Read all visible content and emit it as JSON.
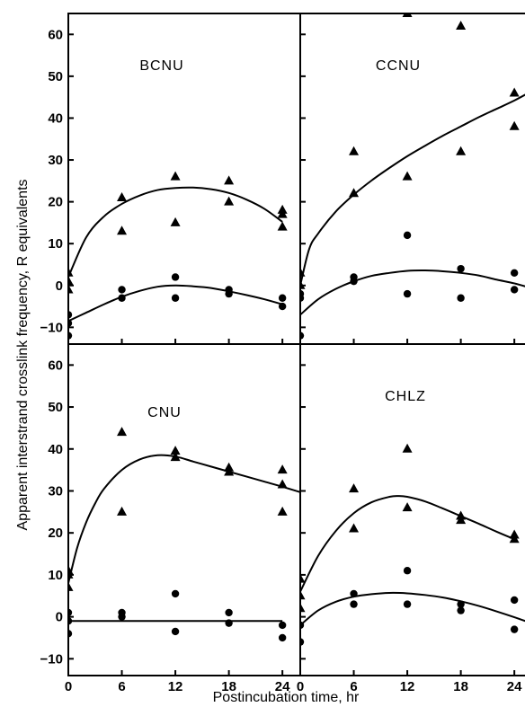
{
  "chart_data": {
    "type": "scatter",
    "ylabel": "Apparent interstrand crosslink frequency, R equivalents",
    "xlabel": "Postincubation time, hr",
    "x_ticks": [
      0,
      6,
      12,
      18,
      24
    ],
    "top_y_ticks": [
      60,
      50,
      40,
      30,
      20,
      10,
      0,
      -10
    ],
    "bottom_y_ticks": [
      60,
      50,
      40,
      30,
      20,
      10,
      0,
      -10
    ],
    "top_ylim": [
      -14,
      65
    ],
    "bottom_ylim": [
      -14,
      65
    ],
    "xlim": [
      0,
      26
    ],
    "panels": [
      {
        "title": "BCNU",
        "position": "top-left",
        "triangles": [
          [
            0,
            3
          ],
          [
            0,
            1
          ],
          [
            0,
            -1
          ],
          [
            6,
            21
          ],
          [
            6,
            13
          ],
          [
            12,
            26
          ],
          [
            12,
            15
          ],
          [
            18,
            25
          ],
          [
            18,
            20
          ],
          [
            24,
            18
          ],
          [
            24,
            17
          ],
          [
            24,
            14
          ]
        ],
        "circles": [
          [
            0,
            -7
          ],
          [
            0,
            -9
          ],
          [
            0,
            -12
          ],
          [
            6,
            -1
          ],
          [
            6,
            -3
          ],
          [
            12,
            2
          ],
          [
            12,
            -3
          ],
          [
            18,
            -1
          ],
          [
            18,
            -2
          ],
          [
            24,
            -3
          ],
          [
            24,
            -5
          ]
        ],
        "triangle_fit": [
          [
            0,
            2
          ],
          [
            2,
            11.5
          ],
          [
            4,
            16.5
          ],
          [
            6,
            19.5
          ],
          [
            8,
            21.5
          ],
          [
            10,
            22.8
          ],
          [
            12,
            23.3
          ],
          [
            14,
            23.4
          ],
          [
            16,
            23
          ],
          [
            18,
            22.1
          ],
          [
            20,
            20.5
          ],
          [
            22,
            18.3
          ],
          [
            24,
            15.2
          ]
        ],
        "circle_fit": [
          [
            0,
            -8.5
          ],
          [
            2,
            -6.5
          ],
          [
            4,
            -4.5
          ],
          [
            6,
            -2.7
          ],
          [
            8,
            -1.3
          ],
          [
            10,
            -0.3
          ],
          [
            12,
            0
          ],
          [
            14,
            -0.2
          ],
          [
            16,
            -0.6
          ],
          [
            18,
            -1.4
          ],
          [
            20,
            -2.3
          ],
          [
            22,
            -3.3
          ],
          [
            24,
            -4.5
          ]
        ]
      },
      {
        "title": "CCNU",
        "position": "top-right",
        "triangles": [
          [
            0,
            3
          ],
          [
            0,
            0
          ],
          [
            6,
            32
          ],
          [
            6,
            22
          ],
          [
            12,
            65
          ],
          [
            12,
            26
          ],
          [
            18,
            62
          ],
          [
            18,
            32
          ],
          [
            24,
            46
          ],
          [
            24,
            38
          ]
        ],
        "circles": [
          [
            0,
            -2
          ],
          [
            0,
            -3
          ],
          [
            0,
            -12
          ],
          [
            6,
            2
          ],
          [
            6,
            1
          ],
          [
            12,
            12
          ],
          [
            12,
            -2
          ],
          [
            18,
            4
          ],
          [
            18,
            -3
          ],
          [
            24,
            3
          ],
          [
            24,
            -1
          ]
        ],
        "triangle_fit": [
          [
            0,
            0
          ],
          [
            1,
            8.7
          ],
          [
            2,
            12.4
          ],
          [
            4,
            17.7
          ],
          [
            6,
            21.7
          ],
          [
            8,
            25.1
          ],
          [
            10,
            28.1
          ],
          [
            12,
            30.9
          ],
          [
            14,
            33.4
          ],
          [
            16,
            35.8
          ],
          [
            18,
            38
          ],
          [
            20,
            40.2
          ],
          [
            22,
            42.2
          ],
          [
            24,
            44.2
          ],
          [
            26,
            46.5
          ]
        ],
        "circle_fit": [
          [
            0,
            -7
          ],
          [
            2,
            -3.3
          ],
          [
            4,
            -0.8
          ],
          [
            6,
            1
          ],
          [
            8,
            2.3
          ],
          [
            10,
            3
          ],
          [
            12,
            3.5
          ],
          [
            14,
            3.6
          ],
          [
            16,
            3.4
          ],
          [
            18,
            3
          ],
          [
            20,
            2.4
          ],
          [
            22,
            1.4
          ],
          [
            24,
            0.5
          ],
          [
            26,
            -0.7
          ]
        ]
      },
      {
        "title": "CNU",
        "position": "bottom-left",
        "triangles": [
          [
            0,
            11
          ],
          [
            0,
            10
          ],
          [
            0,
            7
          ],
          [
            6,
            44
          ],
          [
            6,
            25
          ],
          [
            12,
            39.5
          ],
          [
            12,
            38
          ],
          [
            18,
            35.5
          ],
          [
            18,
            34.5
          ],
          [
            24,
            35
          ],
          [
            24,
            31.5
          ],
          [
            24,
            25
          ]
        ],
        "circles": [
          [
            0,
            1
          ],
          [
            0,
            -1
          ],
          [
            0,
            -4
          ],
          [
            6,
            1
          ],
          [
            6,
            0
          ],
          [
            12,
            5.5
          ],
          [
            12,
            -3.5
          ],
          [
            18,
            1
          ],
          [
            18,
            -1.5
          ],
          [
            24,
            -2
          ],
          [
            24,
            -5
          ]
        ],
        "triangle_fit": [
          [
            0,
            8
          ],
          [
            1,
            16.5
          ],
          [
            2,
            22.5
          ],
          [
            3,
            27
          ],
          [
            4,
            30.5
          ],
          [
            6,
            35
          ],
          [
            8,
            37.5
          ],
          [
            10,
            38.5
          ],
          [
            12,
            38.2
          ],
          [
            14,
            37
          ],
          [
            16,
            35.8
          ],
          [
            18,
            34.6
          ],
          [
            20,
            33.4
          ],
          [
            22,
            32.2
          ],
          [
            24,
            31
          ],
          [
            26,
            29.7
          ]
        ],
        "circle_fit": [
          [
            0,
            -1
          ],
          [
            24,
            -1
          ]
        ]
      },
      {
        "title": "CHLZ",
        "position": "bottom-right",
        "triangles": [
          [
            0,
            9
          ],
          [
            0,
            5
          ],
          [
            0,
            2
          ],
          [
            6,
            30.5
          ],
          [
            6,
            21
          ],
          [
            12,
            40
          ],
          [
            12,
            26
          ],
          [
            18,
            24
          ],
          [
            18,
            23
          ],
          [
            24,
            19.5
          ],
          [
            24,
            18.5
          ]
        ],
        "circles": [
          [
            0,
            -2
          ],
          [
            0,
            -6
          ],
          [
            6,
            5.5
          ],
          [
            6,
            3
          ],
          [
            12,
            11
          ],
          [
            12,
            3
          ],
          [
            18,
            3
          ],
          [
            18,
            1.5
          ],
          [
            24,
            4
          ],
          [
            24,
            -3
          ]
        ],
        "triangle_fit": [
          [
            0,
            6
          ],
          [
            2,
            14.5
          ],
          [
            4,
            20.5
          ],
          [
            6,
            24.7
          ],
          [
            8,
            27.3
          ],
          [
            10,
            28.6
          ],
          [
            11,
            28.8
          ],
          [
            12,
            28.6
          ],
          [
            14,
            27.5
          ],
          [
            16,
            25.8
          ],
          [
            18,
            24
          ],
          [
            20,
            22.2
          ],
          [
            22,
            20.3
          ],
          [
            24,
            18.5
          ]
        ],
        "circle_fit": [
          [
            0,
            -2
          ],
          [
            2,
            1.5
          ],
          [
            4,
            3.6
          ],
          [
            6,
            4.8
          ],
          [
            8,
            5.4
          ],
          [
            10,
            5.7
          ],
          [
            12,
            5.6
          ],
          [
            14,
            5.2
          ],
          [
            16,
            4.6
          ],
          [
            18,
            3.7
          ],
          [
            20,
            2.6
          ],
          [
            22,
            1.3
          ],
          [
            24,
            -0.1
          ],
          [
            26,
            -1.6
          ]
        ]
      }
    ]
  }
}
